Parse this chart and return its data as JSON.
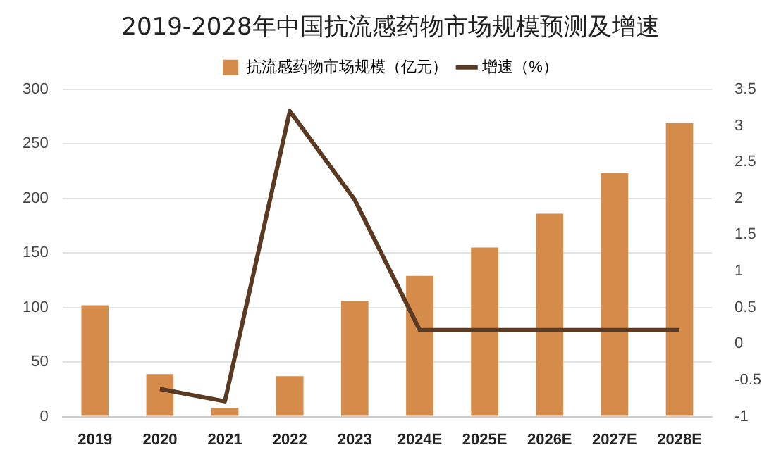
{
  "chart_data": {
    "type": "bar",
    "title": "2019-2028年中国抗流感药物市场规模预测及增速",
    "categories": [
      "2019",
      "2020",
      "2021",
      "2022",
      "2023",
      "2024E",
      "2025E",
      "2026E",
      "2027E",
      "2028E"
    ],
    "series": [
      {
        "name": "抗流感药物市场规模（亿元）",
        "color": "#d58b4a",
        "values": [
          102,
          39,
          8,
          37,
          106,
          129,
          155,
          186,
          223,
          269
        ]
      },
      {
        "name": "增速（%）",
        "type": "line",
        "axis": "y2",
        "color": "#5a3a22",
        "values": [
          null,
          -0.62,
          -0.79,
          3.2,
          1.98,
          0.19,
          0.19,
          0.19,
          0.19,
          0.19
        ]
      }
    ],
    "ylim": [
      0,
      300
    ],
    "yticks": [
      0,
      50,
      100,
      150,
      200,
      250,
      300
    ],
    "y2lim": [
      -1,
      3.5
    ],
    "y2ticks": [
      -1,
      -0.5,
      0,
      0.5,
      1,
      1.5,
      2,
      2.5,
      3,
      3.5
    ],
    "grid": "y",
    "legend": "top",
    "marker": "none"
  }
}
